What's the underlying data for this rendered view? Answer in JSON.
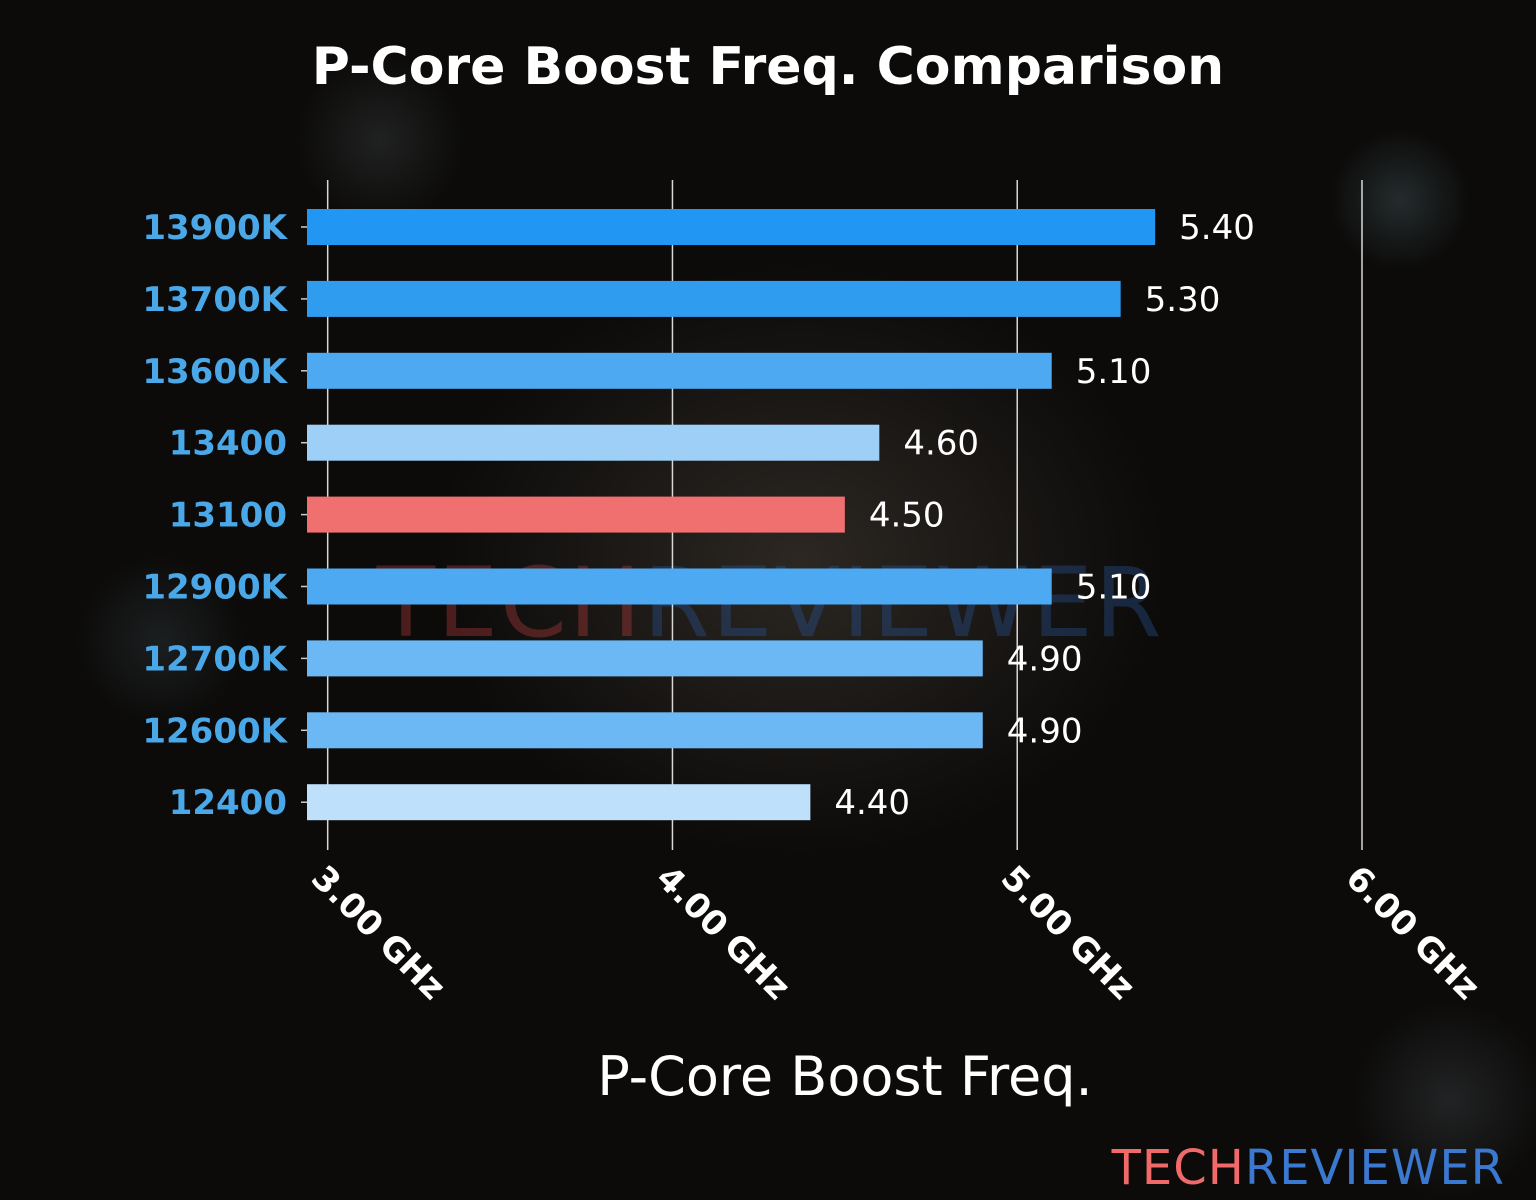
{
  "chart_data": {
    "type": "bar",
    "orientation": "horizontal",
    "title": "P-Core Boost Freq. Comparison",
    "xlabel": "P-Core Boost Freq.",
    "ylabel": "",
    "categories": [
      "13900K",
      "13700K",
      "13600K",
      "13400",
      "13100",
      "12900K",
      "12700K",
      "12600K",
      "12400"
    ],
    "values": [
      5.4,
      5.3,
      5.1,
      4.6,
      4.5,
      5.1,
      4.9,
      4.9,
      4.4
    ],
    "value_labels": [
      "5.40",
      "5.30",
      "5.10",
      "4.60",
      "4.50",
      "5.10",
      "4.90",
      "4.90",
      "4.40"
    ],
    "colors": [
      "#2196f3",
      "#309cef",
      "#4daaf2",
      "#9ed0f7",
      "#f07070",
      "#4daaf2",
      "#6cb8f5",
      "#6cb8f5",
      "#bfe0fb"
    ],
    "xticks": [
      3,
      4,
      5,
      6
    ],
    "xtick_labels": [
      "3.00 GHz",
      "4.00 GHz",
      "5.00 GHz",
      "6.00 GHz"
    ],
    "xlim": [
      2.94,
      6.0
    ],
    "grid": "vertical",
    "category_label_color": "#4aa8e8"
  },
  "watermark": {
    "part1": "TECH",
    "part2": "REVIEWER",
    "color1": "#f06a6a",
    "color2": "#3b78d0"
  }
}
